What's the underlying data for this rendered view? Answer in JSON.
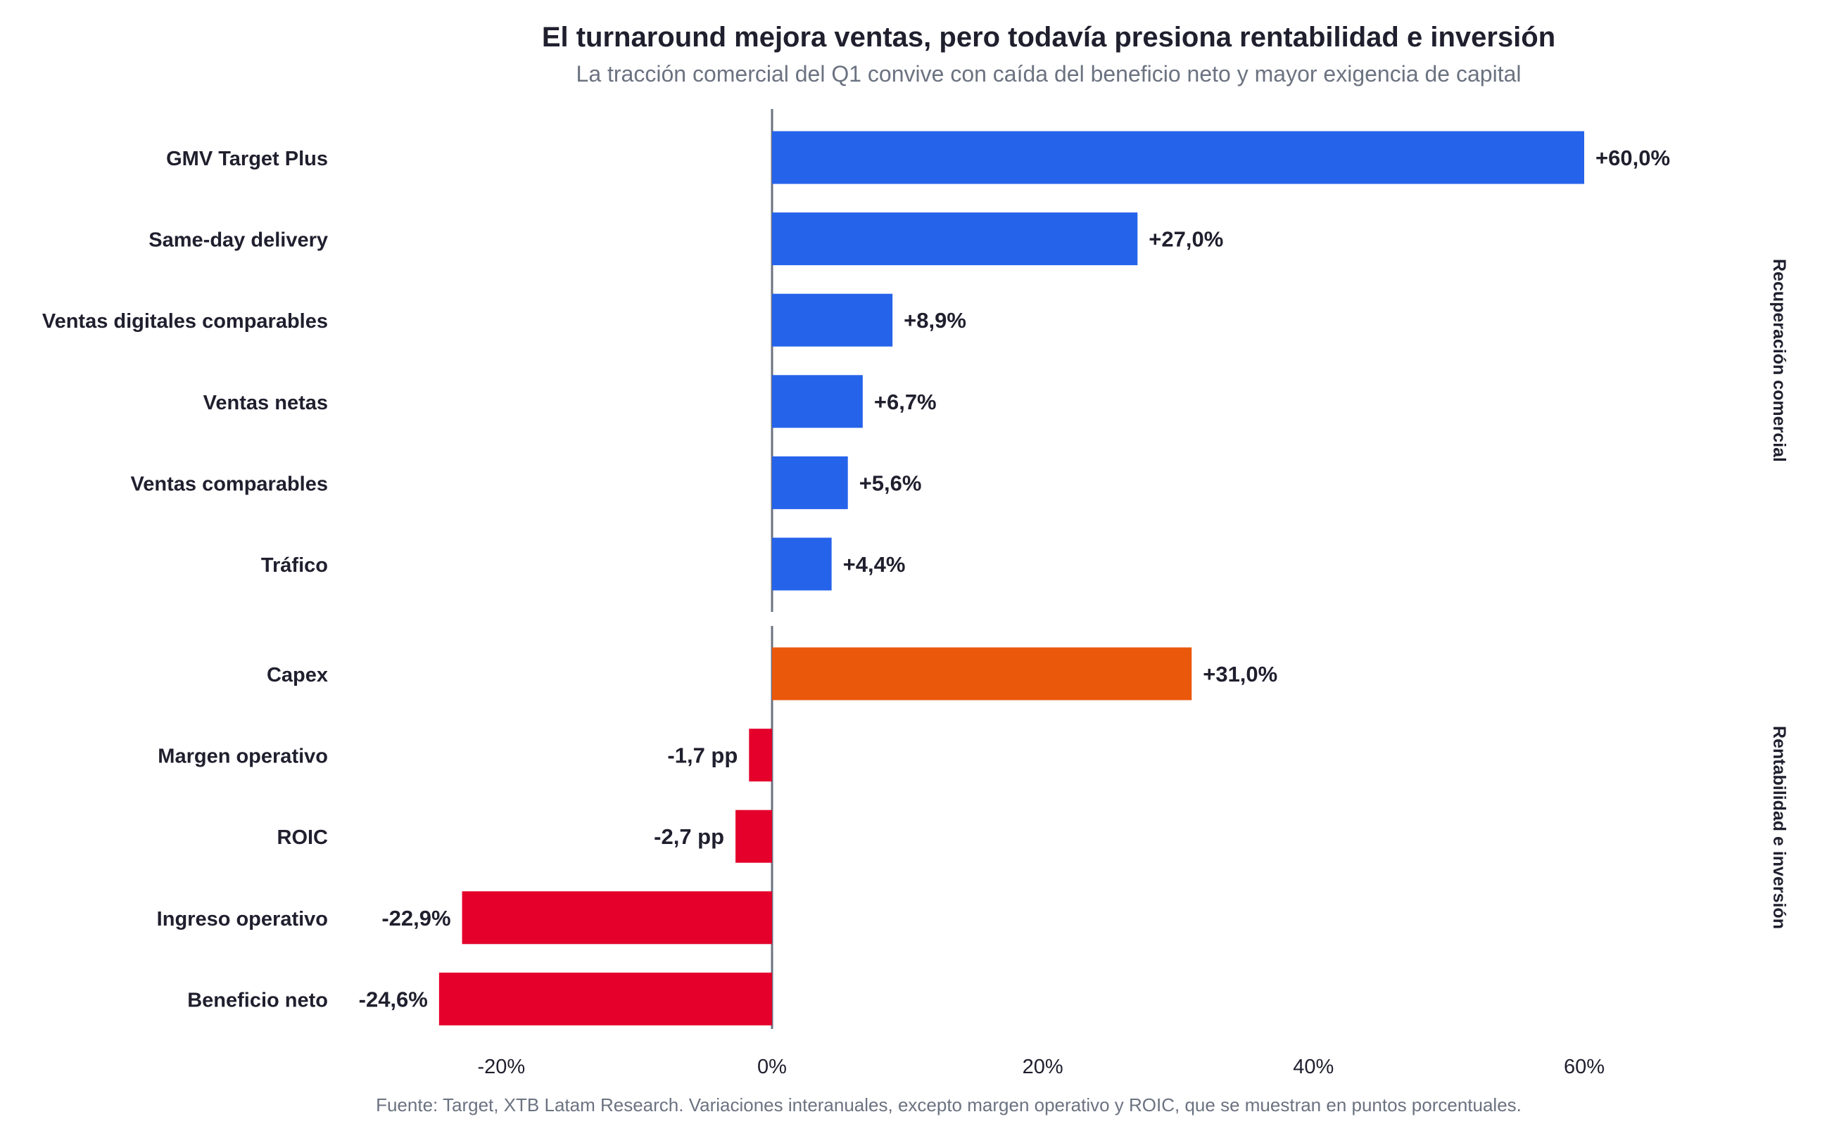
{
  "chart_data": {
    "type": "bar",
    "orientation": "horizontal",
    "title": "El turnaround mejora ventas, pero todavía presiona rentabilidad e inversión",
    "subtitle": "La tracción comercial del Q1 convive con caída del beneficio neto y mayor exigencia de capital",
    "source": "Fuente: Target, XTB Latam Research. Variaciones interanuales, excepto margen operativo y ROIC, que se muestran en puntos porcentuales.",
    "xlim": [
      -32,
      70
    ],
    "xticks": [
      {
        "value": -20,
        "label": "-20%"
      },
      {
        "value": 0,
        "label": "0%"
      },
      {
        "value": 20,
        "label": "20%"
      },
      {
        "value": 40,
        "label": "40%"
      },
      {
        "value": 60,
        "label": "60%"
      }
    ],
    "grid": false,
    "colors": {
      "positive": "#2563eb",
      "capex": "#ea580c",
      "negative": "#e4002b"
    },
    "groups": [
      {
        "name": "Recuperación comercial",
        "bars": [
          {
            "category": "GMV Target Plus",
            "value": 60.0,
            "label": "+60,0%",
            "color": "#2563eb"
          },
          {
            "category": "Same-day delivery",
            "value": 27.0,
            "label": "+27,0%",
            "color": "#2563eb"
          },
          {
            "category": "Ventas digitales comparables",
            "value": 8.9,
            "label": "+8,9%",
            "color": "#2563eb"
          },
          {
            "category": "Ventas netas",
            "value": 6.7,
            "label": "+6,7%",
            "color": "#2563eb"
          },
          {
            "category": "Ventas comparables",
            "value": 5.6,
            "label": "+5,6%",
            "color": "#2563eb"
          },
          {
            "category": "Tráfico",
            "value": 4.4,
            "label": "+4,4%",
            "color": "#2563eb"
          }
        ]
      },
      {
        "name": "Rentabilidad e inversión",
        "bars": [
          {
            "category": "Capex",
            "value": 31.0,
            "label": "+31,0%",
            "color": "#ea580c"
          },
          {
            "category": "Margen operativo",
            "value": -1.7,
            "label": "-1,7 pp",
            "color": "#e4002b"
          },
          {
            "category": "ROIC",
            "value": -2.7,
            "label": "-2,7 pp",
            "color": "#e4002b"
          },
          {
            "category": "Ingreso operativo",
            "value": -22.9,
            "label": "-22,9%",
            "color": "#e4002b"
          },
          {
            "category": "Beneficio neto",
            "value": -24.6,
            "label": "-24,6%",
            "color": "#e4002b"
          }
        ]
      }
    ]
  }
}
